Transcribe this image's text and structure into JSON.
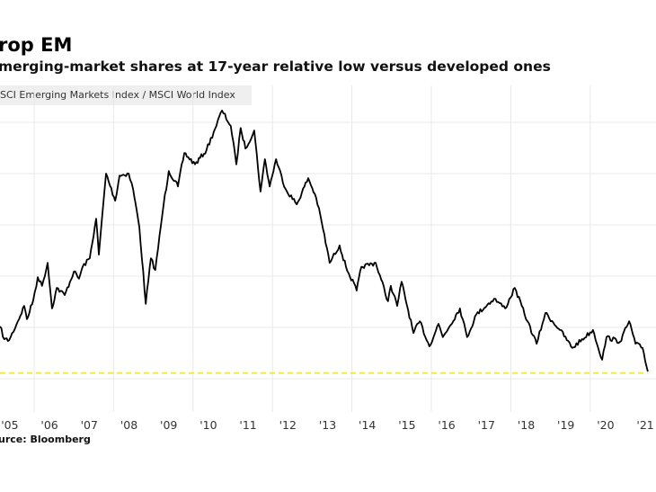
{
  "header": {
    "title": "rop EM",
    "subtitle": "merging-market shares at 17-year relative low versus developed ones"
  },
  "legend": {
    "label": "SCI Emerging Markets Index / MSCI World Index"
  },
  "footer": {
    "source": "urce: Bloomberg"
  },
  "colors": {
    "line": "#000000",
    "reference_line": "#f2ec3a",
    "grid": "#e8e8e8"
  },
  "chart_data": {
    "type": "line",
    "title": "rop EM",
    "subtitle": "merging-market shares at 17-year relative low versus developed ones",
    "xlabel": "",
    "ylabel": "",
    "x_tick_labels": [
      "'05",
      "'06",
      "'07",
      "'08",
      "'09",
      "'10",
      "'11",
      "'12",
      "'13",
      "'14",
      "'15",
      "'16",
      "'17",
      "'18",
      "'19",
      "'20",
      "'21"
    ],
    "y_axis_labels_shown": false,
    "ylim": [
      0.33,
      0.9
    ],
    "xlim": [
      2005.13,
      2021.5
    ],
    "grid": true,
    "legend_placement": "top-left",
    "series": [
      {
        "name": "SCI Emerging Markets Index / MSCI World Index",
        "x": [
          2005.14,
          2005.25,
          2005.37,
          2005.59,
          2005.75,
          2005.82,
          2005.98,
          2006.09,
          2006.2,
          2006.34,
          2006.45,
          2006.57,
          2006.77,
          2007.0,
          2007.13,
          2007.22,
          2007.4,
          2007.56,
          2007.63,
          2007.81,
          2008.04,
          2008.15,
          2008.38,
          2008.49,
          2008.65,
          2008.81,
          2008.94,
          2009.05,
          2009.26,
          2009.39,
          2009.62,
          2009.78,
          2010.05,
          2010.34,
          2010.52,
          2010.73,
          2010.95,
          2011.09,
          2011.2,
          2011.32,
          2011.54,
          2011.7,
          2011.81,
          2011.93,
          2012.09,
          2012.33,
          2012.61,
          2012.9,
          2013.1,
          2013.24,
          2013.44,
          2013.69,
          2013.85,
          2014.12,
          2014.24,
          2014.6,
          2014.91,
          2014.98,
          2015.14,
          2015.25,
          2015.55,
          2015.71,
          2015.95,
          2016.18,
          2016.29,
          2016.72,
          2016.9,
          2017.13,
          2017.58,
          2017.86,
          2018.1,
          2018.42,
          2018.65,
          2018.87,
          2019.24,
          2019.55,
          2020.07,
          2020.3,
          2020.41,
          2020.75,
          2020.98,
          2021.14,
          2021.32,
          2021.45
        ],
        "y": [
          0.452,
          0.427,
          0.425,
          0.462,
          0.492,
          0.466,
          0.504,
          0.548,
          0.531,
          0.576,
          0.487,
          0.527,
          0.513,
          0.559,
          0.545,
          0.568,
          0.585,
          0.662,
          0.592,
          0.75,
          0.697,
          0.746,
          0.75,
          0.72,
          0.645,
          0.496,
          0.585,
          0.562,
          0.69,
          0.755,
          0.725,
          0.79,
          0.768,
          0.796,
          0.831,
          0.873,
          0.843,
          0.768,
          0.839,
          0.799,
          0.834,
          0.715,
          0.778,
          0.725,
          0.778,
          0.72,
          0.69,
          0.741,
          0.703,
          0.655,
          0.576,
          0.61,
          0.568,
          0.522,
          0.568,
          0.576,
          0.501,
          0.531,
          0.492,
          0.539,
          0.439,
          0.462,
          0.413,
          0.457,
          0.431,
          0.487,
          0.431,
          0.475,
          0.506,
          0.487,
          0.527,
          0.462,
          0.418,
          0.478,
          0.445,
          0.41,
          0.445,
          0.387,
          0.431,
          0.422,
          0.462,
          0.418,
          0.41,
          0.364
        ]
      }
    ],
    "reference_line": {
      "style": "dashed",
      "value": 0.361,
      "color": "#f2ec3a"
    }
  }
}
